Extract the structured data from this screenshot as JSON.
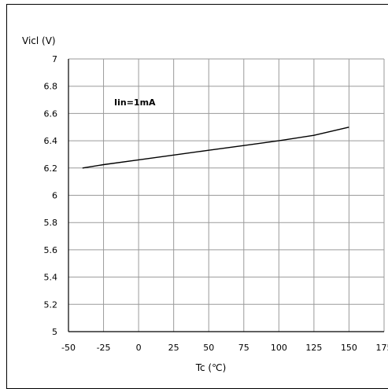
{
  "chart_data": {
    "type": "line",
    "ylabel": "Vicl (V)",
    "xlabel": "Tc (℃)",
    "xlim": [
      -50,
      175
    ],
    "ylim": [
      5,
      7
    ],
    "xticks": [
      "-50",
      "-25",
      "0",
      "25",
      "50",
      "75",
      "100",
      "125",
      "150",
      "175"
    ],
    "yticks": [
      "5",
      "5.2",
      "5.4",
      "5.6",
      "5.8",
      "6",
      "6.2",
      "6.4",
      "6.6",
      "6.8",
      "7"
    ],
    "grid": true,
    "annotation": "Iin=1mA",
    "series": [
      {
        "x": [
          -40,
          -25,
          0,
          25,
          50,
          75,
          100,
          125,
          150
        ],
        "y": [
          6.2,
          6.225,
          6.26,
          6.295,
          6.33,
          6.365,
          6.4,
          6.44,
          6.5
        ],
        "color": "#000000"
      }
    ]
  }
}
